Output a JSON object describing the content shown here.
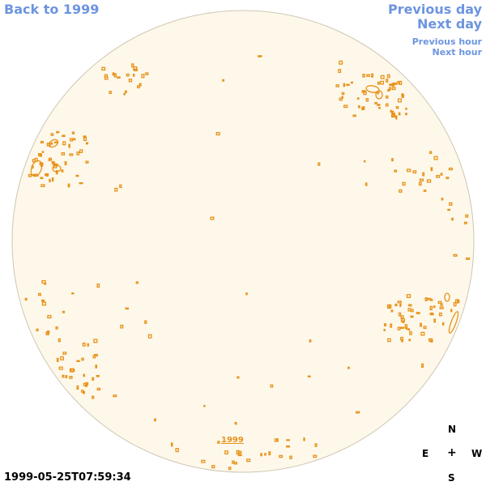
{
  "nav": {
    "back_label": "Back to 1999",
    "previous_day_label": "Previous day",
    "next_day_label": "Next day",
    "previous_hour_label": "Previous hour",
    "next_hour_label": "Next hour"
  },
  "map": {
    "disk_fill": "#fdf8ea",
    "disk_stroke": "#cfc7b4",
    "contour_color": "#e8921a",
    "year_label": "1999"
  },
  "compass": {
    "north": "N",
    "east": "E",
    "center": "+",
    "west": "W",
    "south": "S"
  },
  "timestamp": "1999-05-25T07:59:34",
  "colors": {
    "link": "#6c95e0",
    "contour": "#e8921a"
  }
}
